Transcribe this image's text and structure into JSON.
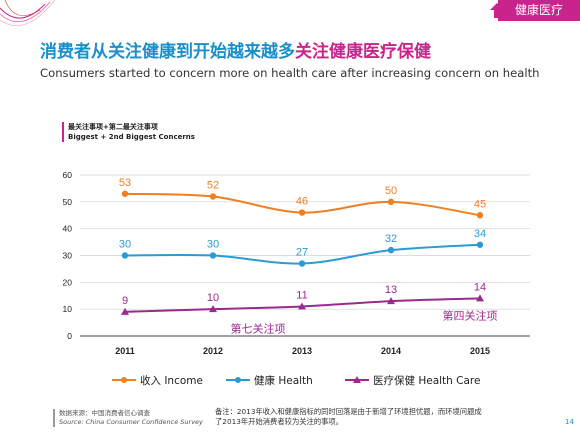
{
  "header": {
    "tag": "健康医疗"
  },
  "title": {
    "cn_part1": "消费者从关注健康到开始越来越多",
    "cn_part2": "关注健康医疗保健",
    "en": "Consumers started to concern more on health care after increasing concern on health"
  },
  "chart_header": {
    "cn": "最关注事项+第二最关注事项",
    "en": "Biggest + 2nd Biggest Concerns"
  },
  "chart_data": {
    "type": "line",
    "x": [
      "2011",
      "2012",
      "2013",
      "2014",
      "2015"
    ],
    "ylim": [
      0,
      60
    ],
    "yticks": [
      "0",
      "10",
      "20",
      "30",
      "40",
      "50",
      "60"
    ],
    "series": [
      {
        "name": "收入 Income",
        "values": [
          53,
          52,
          46,
          50,
          45
        ],
        "color": "#f07f22",
        "marker": "circle"
      },
      {
        "name": "健康 Health",
        "values": [
          30,
          30,
          27,
          32,
          34
        ],
        "color": "#2a9bd3",
        "marker": "circle"
      },
      {
        "name": "医疗保健 Health Care",
        "values": [
          9,
          10,
          11,
          13,
          14
        ],
        "color": "#9b2a8e",
        "marker": "triangle"
      }
    ],
    "annotations": [
      {
        "text": "第七关注项",
        "x": "2013",
        "color": "#9b2a8e"
      },
      {
        "text": "第四关注项",
        "x": "2015",
        "color": "#9b2a8e"
      }
    ],
    "legend": "bottom"
  },
  "footer": {
    "source_cn": "数据来源：中国消费者信心调查",
    "source_en": "Source: China Consumer Confidence Survey",
    "note": "备注：2013年收入和健康指标的同时回落是由于新增了环境担忧题，而环境问题成了2013年开始消费者较为关注的事项。",
    "page": "14"
  }
}
